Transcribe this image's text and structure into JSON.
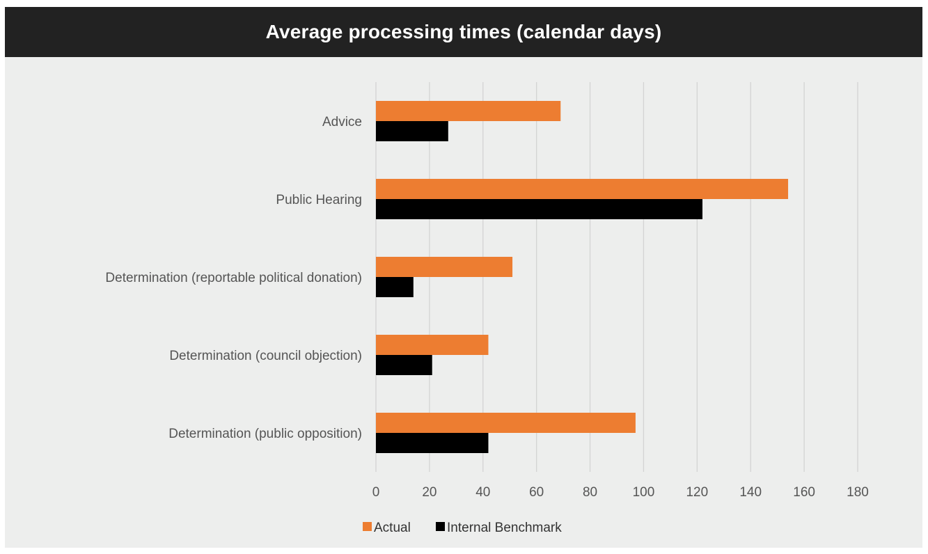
{
  "chart_data": {
    "type": "bar",
    "orientation": "horizontal",
    "title": "Average processing times (calendar days)",
    "categories": [
      "Advice",
      "Public Hearing",
      "Determination (reportable political donation)",
      "Determination (council objection)",
      "Determination (public opposition)"
    ],
    "series": [
      {
        "name": "Actual",
        "color": "#ed7d31",
        "values": [
          69,
          154,
          51,
          42,
          97
        ]
      },
      {
        "name": "Internal Benchmark",
        "color": "#000000",
        "values": [
          27,
          122,
          14,
          21,
          42
        ]
      }
    ],
    "xlim": [
      0,
      180
    ],
    "xticks": [
      0,
      20,
      40,
      60,
      80,
      100,
      120,
      140,
      160,
      180
    ],
    "grid": true,
    "legend_position": "bottom"
  }
}
